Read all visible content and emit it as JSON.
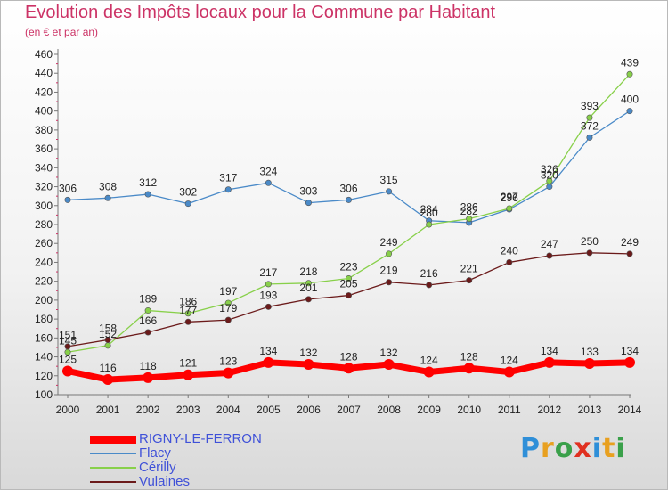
{
  "title": "Evolution des Impôts locaux pour la Commune par Habitant",
  "subtitle": "(en € et par an)",
  "logo": "Proxiti",
  "chart_data": {
    "type": "line",
    "title": "Evolution des Impôts locaux pour la Commune par Habitant",
    "subtitle": "(en € et par an)",
    "xlabel": "",
    "ylabel": "",
    "x": [
      2000,
      2001,
      2002,
      2003,
      2004,
      2005,
      2006,
      2007,
      2008,
      2009,
      2010,
      2011,
      2012,
      2013,
      2014
    ],
    "ylim": [
      100,
      460
    ],
    "yticks": [
      100,
      120,
      140,
      160,
      180,
      200,
      220,
      240,
      260,
      280,
      300,
      320,
      340,
      360,
      380,
      400,
      420,
      440,
      460
    ],
    "grid": false,
    "legend_position": "bottom-left",
    "series": [
      {
        "name": "RIGNY-LE-FERRON",
        "color": "#ff0000",
        "values": [
          125,
          116,
          118,
          121,
          123,
          134,
          132,
          128,
          132,
          124,
          128,
          124,
          134,
          133,
          134
        ]
      },
      {
        "name": "Flacy",
        "color": "#4a8ac8",
        "values": [
          306,
          308,
          312,
          302,
          317,
          324,
          303,
          306,
          315,
          284,
          282,
          296,
          320,
          372,
          400
        ]
      },
      {
        "name": "Cérilly",
        "color": "#88d04a",
        "values": [
          145,
          152,
          189,
          186,
          197,
          217,
          218,
          223,
          249,
          280,
          286,
          297,
          326,
          393,
          439
        ]
      },
      {
        "name": "Vulaines",
        "color": "#6b1a1a",
        "values": [
          151,
          158,
          166,
          177,
          179,
          193,
          201,
          205,
          219,
          216,
          221,
          240,
          247,
          250,
          249
        ]
      }
    ]
  }
}
